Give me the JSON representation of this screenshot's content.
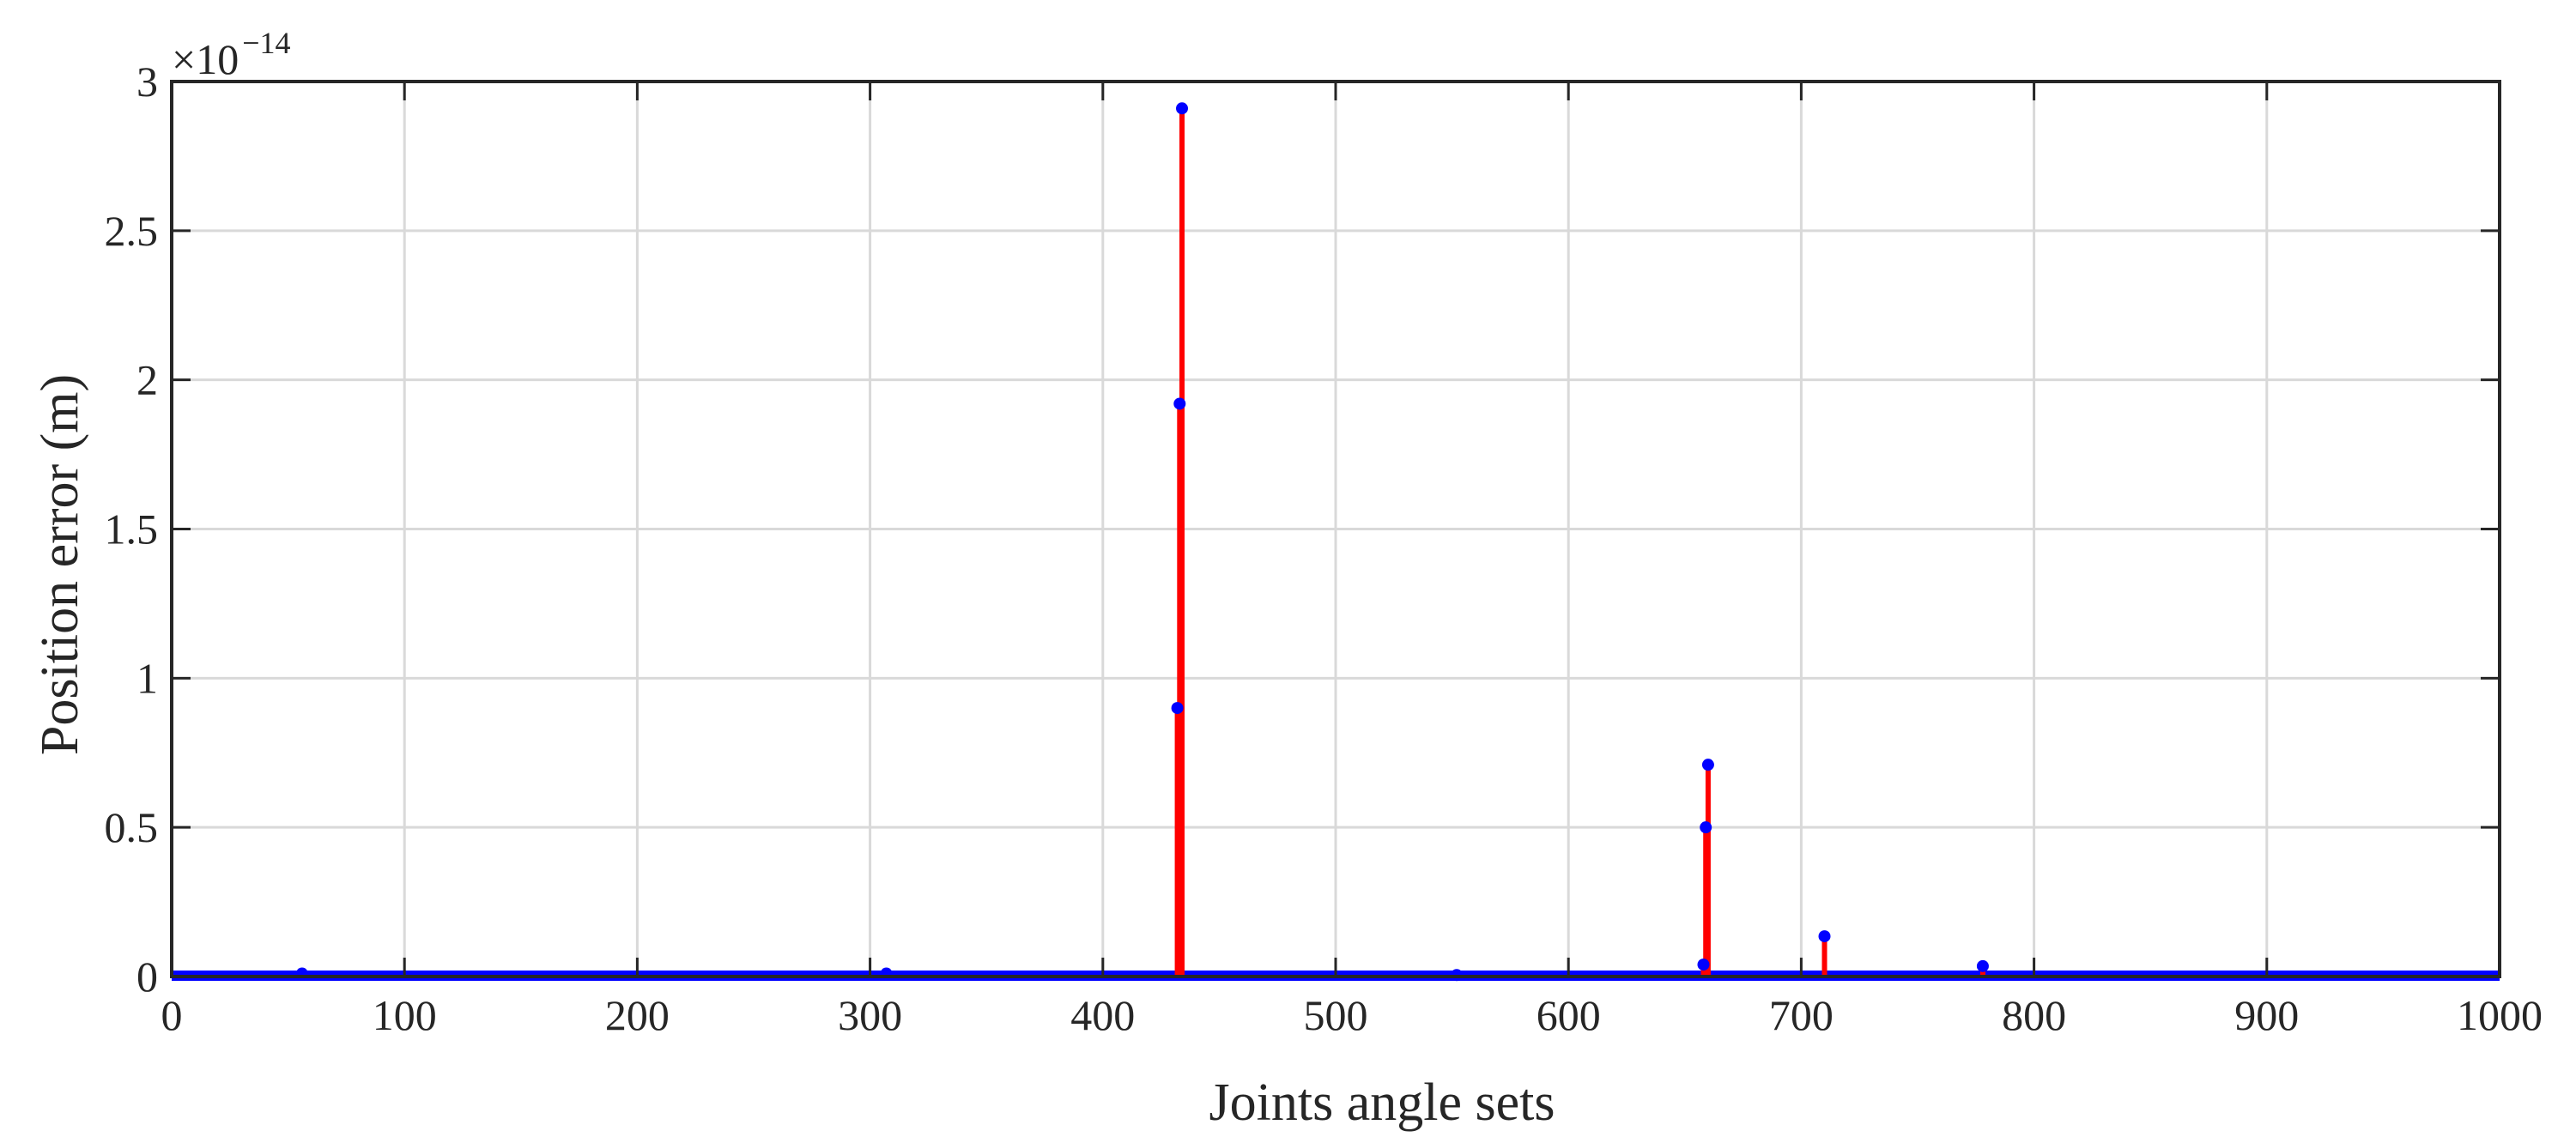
{
  "chart_data": {
    "type": "stem",
    "title": "",
    "xlabel": "Joints angle sets",
    "ylabel": "Position error (m)",
    "y_exponent_base": "×10",
    "y_exponent_power": "−14",
    "xlim": [
      0,
      1000
    ],
    "ylim": [
      0,
      3
    ],
    "x_ticks": [
      0,
      100,
      200,
      300,
      400,
      500,
      600,
      700,
      800,
      900,
      1000
    ],
    "x_tick_labels": [
      "0",
      "100",
      "200",
      "300",
      "400",
      "500",
      "600",
      "700",
      "800",
      "900",
      "1000"
    ],
    "y_ticks": [
      0,
      0.5,
      1,
      1.5,
      2,
      2.5,
      3
    ],
    "y_tick_labels": [
      "0",
      "0.5",
      "1",
      "1.5",
      "2",
      "2.5",
      "3"
    ],
    "grid": true,
    "stem_color": "#ff0000",
    "marker_color": "#0000ff",
    "baseline_color": "#0000ff",
    "points": [
      {
        "x": 56,
        "y": 0.01
      },
      {
        "x": 307,
        "y": 0.01
      },
      {
        "x": 432,
        "y": 0.9
      },
      {
        "x": 433,
        "y": 1.92
      },
      {
        "x": 434,
        "y": 2.91
      },
      {
        "x": 552,
        "y": 0.005
      },
      {
        "x": 658,
        "y": 0.04
      },
      {
        "x": 659,
        "y": 0.5
      },
      {
        "x": 660,
        "y": 0.71
      },
      {
        "x": 710,
        "y": 0.135
      },
      {
        "x": 778,
        "y": 0.035
      }
    ]
  }
}
